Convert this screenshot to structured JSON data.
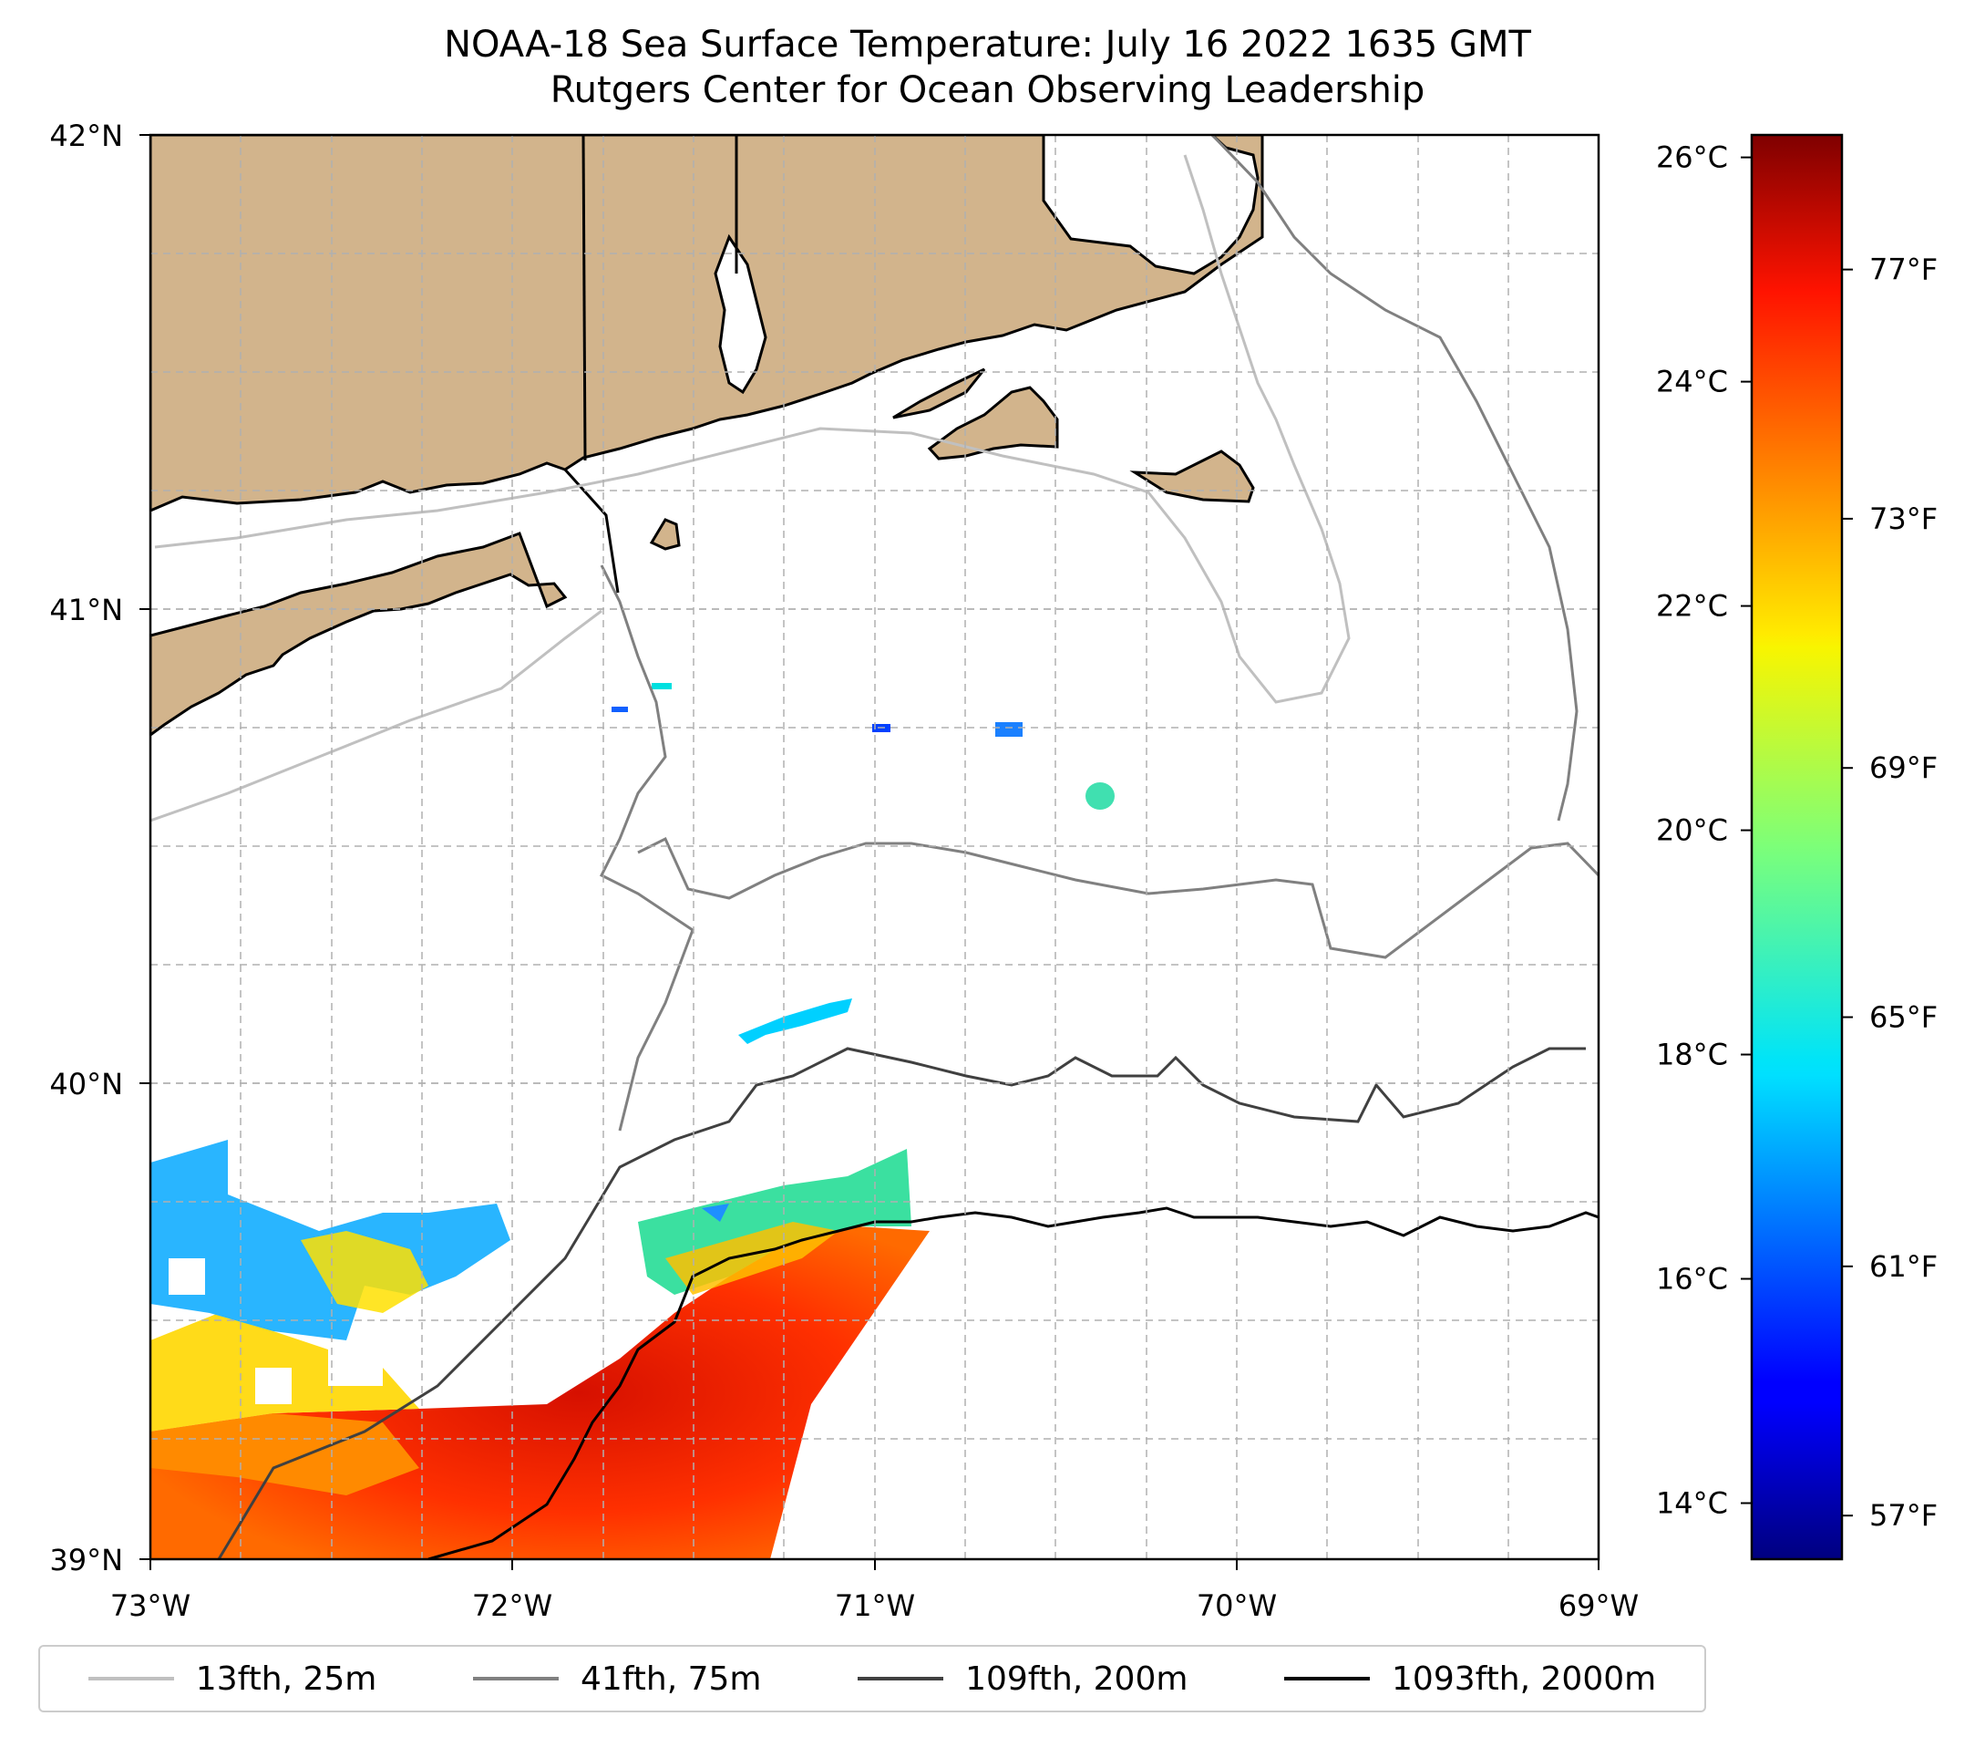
{
  "title": {
    "line1": "NOAA-18 Sea Surface Temperature: July 16 2022 1635 GMT",
    "line2": "Rutgers Center for Ocean Observing Leadership"
  },
  "map": {
    "lon_range": [
      -73,
      -69
    ],
    "lat_range": [
      39,
      42
    ],
    "lon_ticks": [
      "73°W",
      "72°W",
      "71°W",
      "70°W",
      "69°W"
    ],
    "lat_ticks": [
      "42°N",
      "41°N",
      "40°N",
      "39°N"
    ],
    "land_color": "#d2b48c",
    "grid": true
  },
  "colorbar": {
    "colormap": "jet",
    "range_c": [
      13.5,
      26.2
    ],
    "celsius_ticks": [
      {
        "value": 26,
        "label": "26°C"
      },
      {
        "value": 24,
        "label": "24°C"
      },
      {
        "value": 22,
        "label": "22°C"
      },
      {
        "value": 20,
        "label": "20°C"
      },
      {
        "value": 18,
        "label": "18°C"
      },
      {
        "value": 16,
        "label": "16°C"
      },
      {
        "value": 14,
        "label": "14°C"
      }
    ],
    "fahrenheit_ticks": [
      {
        "value": 77,
        "label": "77°F"
      },
      {
        "value": 73,
        "label": "73°F"
      },
      {
        "value": 69,
        "label": "69°F"
      },
      {
        "value": 65,
        "label": "65°F"
      },
      {
        "value": 61,
        "label": "61°F"
      },
      {
        "value": 57,
        "label": "57°F"
      }
    ]
  },
  "legend": {
    "items": [
      {
        "label": "13fth, 25m",
        "color": "#c0c0c0"
      },
      {
        "label": "41fth, 75m",
        "color": "#808080"
      },
      {
        "label": "109fth, 200m",
        "color": "#404040"
      },
      {
        "label": "1093fth, 2000m",
        "color": "#000000"
      }
    ]
  }
}
